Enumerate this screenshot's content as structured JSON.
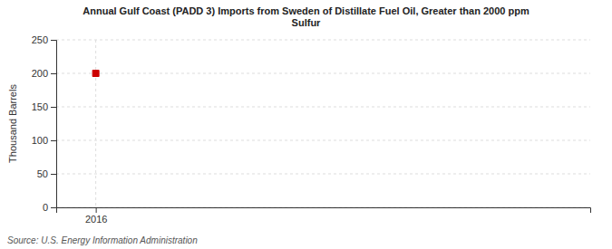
{
  "chart_data": {
    "type": "scatter",
    "title": "Annual Gulf Coast (PADD 3) Imports from Sweden of Distillate Fuel Oil, Greater than 2000 ppm\nSulfur",
    "ylabel": "Thousand Barrels",
    "source": "Source: U.S. Energy Information Administration",
    "x": [
      2016
    ],
    "values": [
      200
    ],
    "color": "#cc0000",
    "marker": "square",
    "xlim": [
      2015.6,
      2021.0
    ],
    "xticks": [
      2016
    ],
    "ylim": [
      0,
      250
    ],
    "yticks": [
      0,
      50,
      100,
      150,
      200,
      250
    ],
    "grid": true
  }
}
